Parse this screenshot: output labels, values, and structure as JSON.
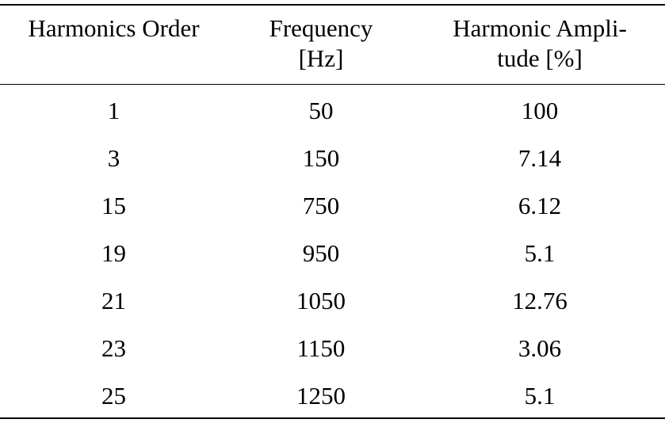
{
  "table": {
    "headers": {
      "order": [
        "Harmonics Order"
      ],
      "frequency": [
        "Frequency",
        "[Hz]"
      ],
      "amplitude": [
        "Harmonic Ampli-",
        "tude [%]"
      ]
    },
    "rows": [
      {
        "order": "1",
        "frequency": "50",
        "amplitude": "100"
      },
      {
        "order": "3",
        "frequency": "150",
        "amplitude": "7.14"
      },
      {
        "order": "15",
        "frequency": "750",
        "amplitude": "6.12"
      },
      {
        "order": "19",
        "frequency": "950",
        "amplitude": "5.1"
      },
      {
        "order": "21",
        "frequency": "1050",
        "amplitude": "12.76"
      },
      {
        "order": "23",
        "frequency": "1150",
        "amplitude": "3.06"
      },
      {
        "order": "25",
        "frequency": "1250",
        "amplitude": "5.1"
      }
    ]
  }
}
